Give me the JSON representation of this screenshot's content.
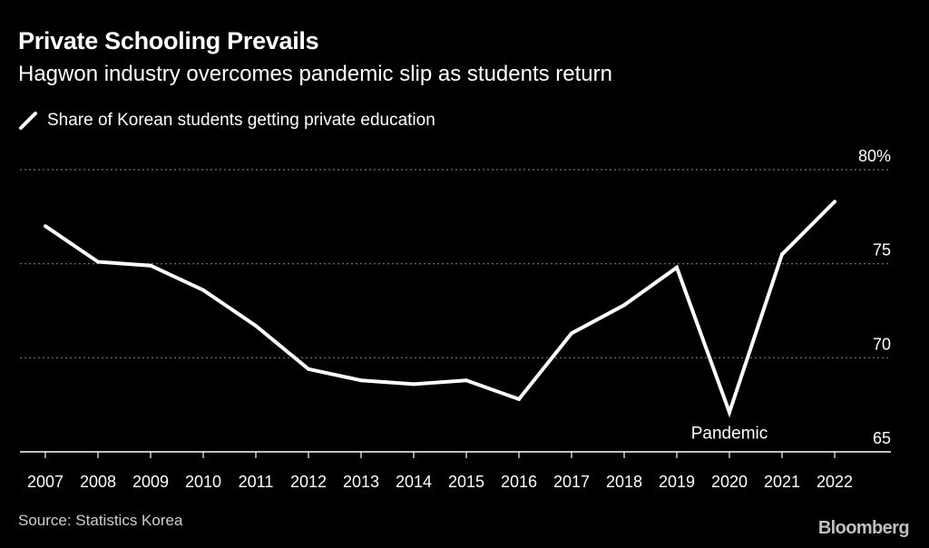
{
  "header": {
    "title": "Private Schooling Prevails",
    "subtitle": "Hagwon industry overcomes pandemic slip as students return"
  },
  "legend": {
    "label": "Share of Korean students getting private education"
  },
  "footer": {
    "source": "Source: Statistics Korea",
    "brand": "Bloomberg"
  },
  "chart_data": {
    "type": "line",
    "title": "Private Schooling Prevails",
    "subtitle": "Hagwon industry overcomes pandemic slip as students return",
    "xlabel": "",
    "ylabel": "",
    "x": [
      "2007",
      "2008",
      "2009",
      "2010",
      "2011",
      "2012",
      "2013",
      "2014",
      "2015",
      "2016",
      "2017",
      "2018",
      "2019",
      "2020",
      "2021",
      "2022"
    ],
    "series": [
      {
        "name": "Share of Korean students getting private education",
        "values": [
          77.0,
          75.1,
          74.9,
          73.6,
          71.7,
          69.4,
          68.8,
          68.6,
          68.8,
          67.8,
          71.3,
          72.8,
          74.8,
          67.1,
          75.5,
          78.3
        ]
      }
    ],
    "ylim": [
      65,
      80
    ],
    "yticks": [
      65,
      70,
      75,
      80
    ],
    "ytick_labels": [
      "65",
      "70",
      "75",
      "80%"
    ],
    "y_axis_position": "right",
    "grid": true,
    "legend_position": "top-left",
    "annotations": [
      {
        "text": "Pandemic",
        "x": "2020"
      }
    ],
    "colors": {
      "background": "#000000",
      "line": "#ffffff",
      "grid": "#777777",
      "text": "#ffffff"
    }
  }
}
